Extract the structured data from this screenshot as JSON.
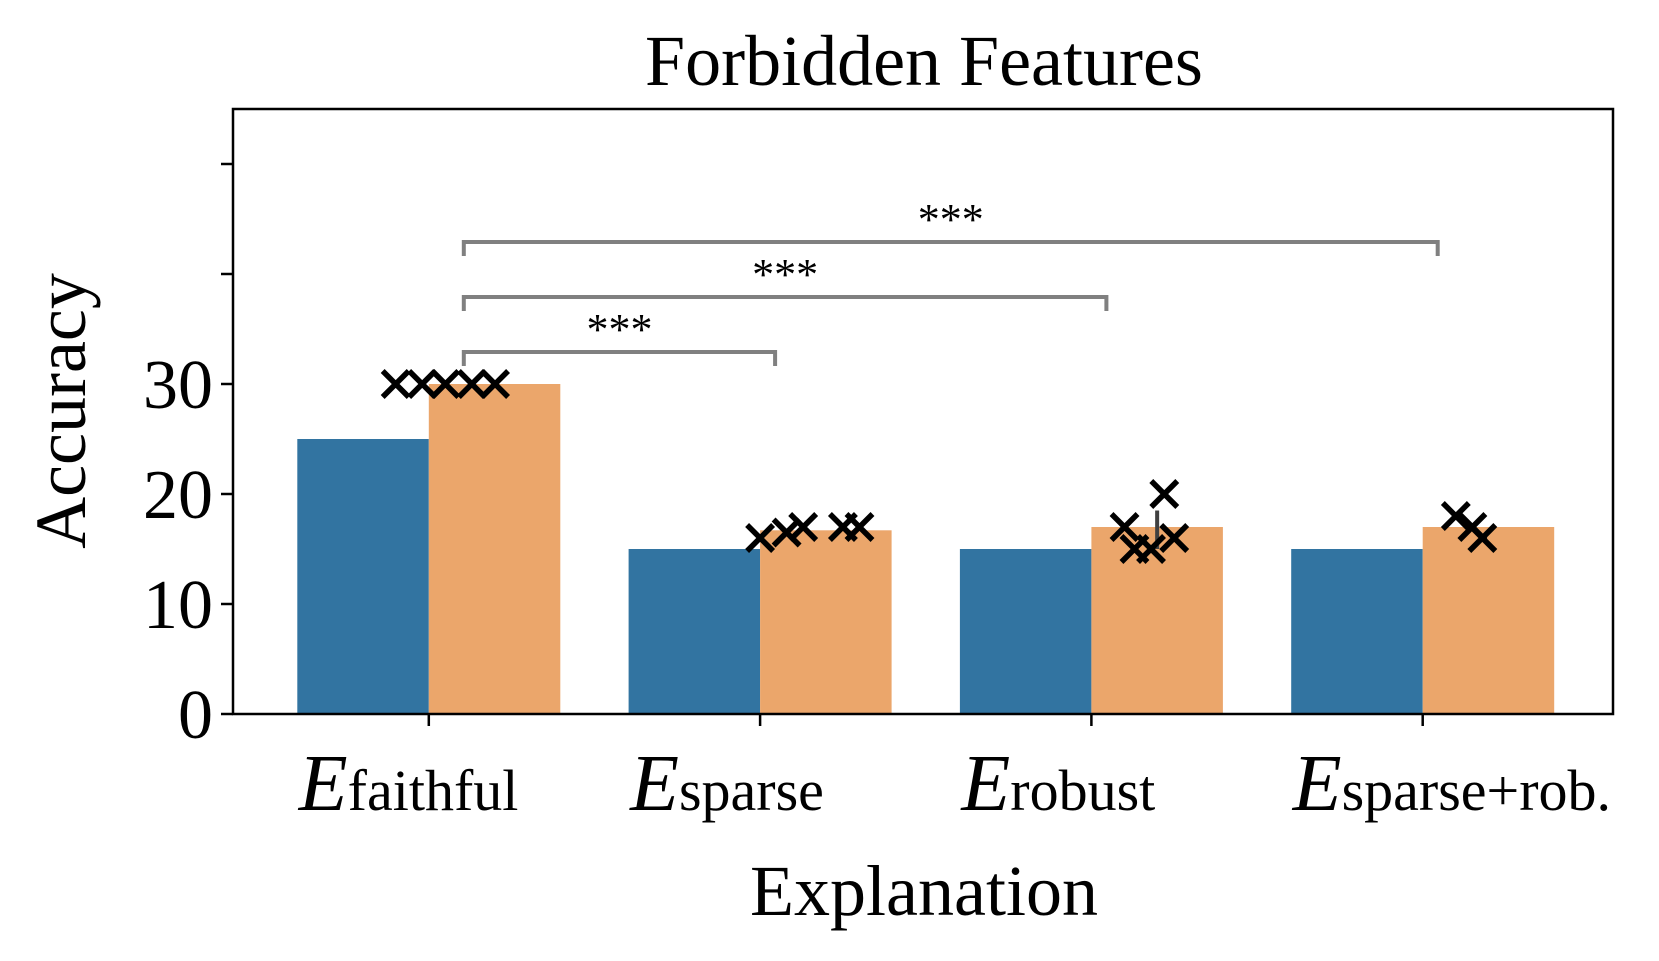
{
  "chart_data": {
    "type": "bar",
    "title": "Forbidden Features",
    "xlabel": "Explanation",
    "ylabel": "Accuracy",
    "ylim": [
      0,
      50
    ],
    "yticks": [
      0,
      10,
      20,
      30
    ],
    "grid": false,
    "categories": [
      {
        "main": "E",
        "sub": "faithful"
      },
      {
        "main": "E",
        "sub": "sparse"
      },
      {
        "main": "E",
        "sub": "robust"
      },
      {
        "main": "E",
        "sub": "sparse+rob."
      }
    ],
    "series": [
      {
        "color": "#3274a1",
        "values": [
          25,
          15,
          15,
          15
        ]
      },
      {
        "color": "#eba66b",
        "values": [
          30,
          16.7,
          17,
          17
        ]
      }
    ],
    "points": [
      [
        30,
        30,
        30,
        30,
        30
      ],
      [
        16,
        16.5,
        17,
        17,
        17
      ],
      [
        17,
        20,
        15,
        15,
        16
      ],
      [
        18,
        17,
        16
      ]
    ],
    "point_offsets": [
      [
        -0.1,
        -0.02,
        0.05,
        0.13,
        0.2
      ],
      [
        0.0,
        0.08,
        0.13,
        0.25,
        0.3
      ],
      [
        0.1,
        0.22,
        0.13,
        0.18,
        0.25
      ],
      [
        0.1,
        0.15,
        0.18
      ]
    ],
    "error_bars": [
      {
        "category": 2,
        "series": 1,
        "low": 15,
        "high": 18.5
      }
    ],
    "significance": [
      {
        "from": 0,
        "to": 1,
        "label": "***"
      },
      {
        "from": 0,
        "to": 2,
        "label": "***"
      },
      {
        "from": 0,
        "to": 3,
        "label": "***"
      }
    ],
    "bracket_color": "#808080",
    "marker_color": "#000000"
  }
}
